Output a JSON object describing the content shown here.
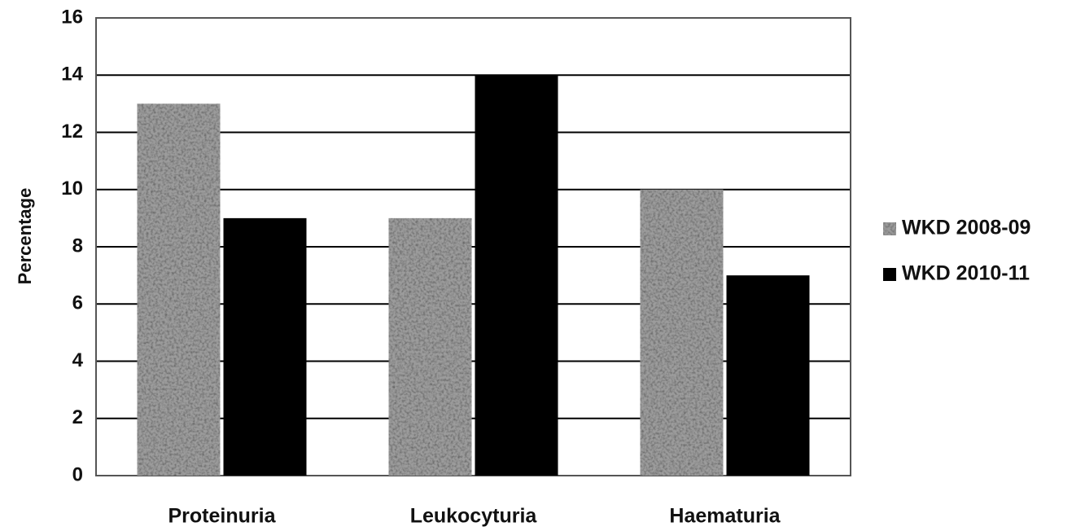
{
  "chart_data": {
    "type": "bar",
    "categories": [
      "Proteinuria",
      "Leukocyturia",
      "Haematuria"
    ],
    "series": [
      {
        "name": "WKD 2008-09",
        "color": "#9c9c9c",
        "values": [
          13,
          9,
          10
        ]
      },
      {
        "name": "WKD 2010-11",
        "color": "#000000",
        "values": [
          9,
          14,
          7
        ]
      }
    ],
    "y_label": "Percentage",
    "ylim": [
      0,
      16
    ],
    "yticks": [
      0,
      2,
      4,
      6,
      8,
      10,
      12,
      14,
      16
    ],
    "grid": true,
    "legend": "right"
  }
}
